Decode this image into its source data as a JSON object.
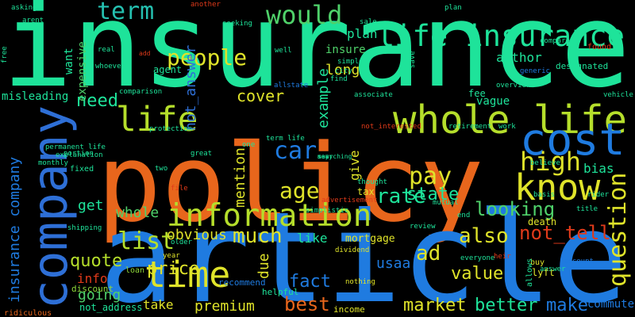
{
  "words": [
    "insurance",
    "policy",
    "article",
    "whole life",
    "life insurance",
    "company",
    "information",
    "time",
    "life",
    "cost",
    "know",
    "high",
    "would",
    "people",
    "term",
    "pay",
    "car",
    "age",
    "list",
    "much",
    "rate",
    "state",
    "looking",
    "also",
    "ad",
    "question",
    "not_tell",
    "make",
    "value",
    "better",
    "market",
    "best",
    "premium",
    "fact",
    "usaa",
    "mortgage",
    "like",
    "price",
    "quote",
    "going",
    "info",
    "obvious",
    "whole",
    "get",
    "need",
    "cover",
    "mention",
    "not_answer",
    "example",
    "give",
    "due",
    "plan",
    "insure",
    "long",
    "expensive",
    "want",
    "author",
    "agent",
    "bias",
    "commute",
    "insurance company",
    "misleading",
    "take",
    "tax",
    "fee",
    "vague",
    "lyft",
    "death",
    "income",
    "discount",
    "not_address",
    "ridiculous",
    "loan",
    "helpful",
    "nothing",
    "dividend",
    "buy",
    "heir",
    "account",
    "simplistic",
    "retirement",
    "not_interested",
    "protection",
    "permanent life",
    "explanation",
    "monthly",
    "fixed",
    "shipping",
    "advertisement",
    "term life",
    "associate",
    "generic",
    "designated",
    "compare",
    "found",
    "real",
    "whoever",
    "comparison",
    "seeking",
    "another",
    "plan",
    "sale",
    "save",
    "city",
    "find",
    "simple",
    "answer",
    "allows",
    "year",
    "older",
    "recommend",
    "allstate",
    "one",
    "two",
    "great",
    "file",
    "basis",
    "rider",
    "believe",
    "work",
    "vehicle",
    "thought",
    "end",
    "review",
    "mutual",
    "title",
    "everyone",
    "overview",
    "portion",
    "arent",
    "asking",
    "free",
    "add",
    "well",
    "searching",
    "many",
    "say"
  ]
}
